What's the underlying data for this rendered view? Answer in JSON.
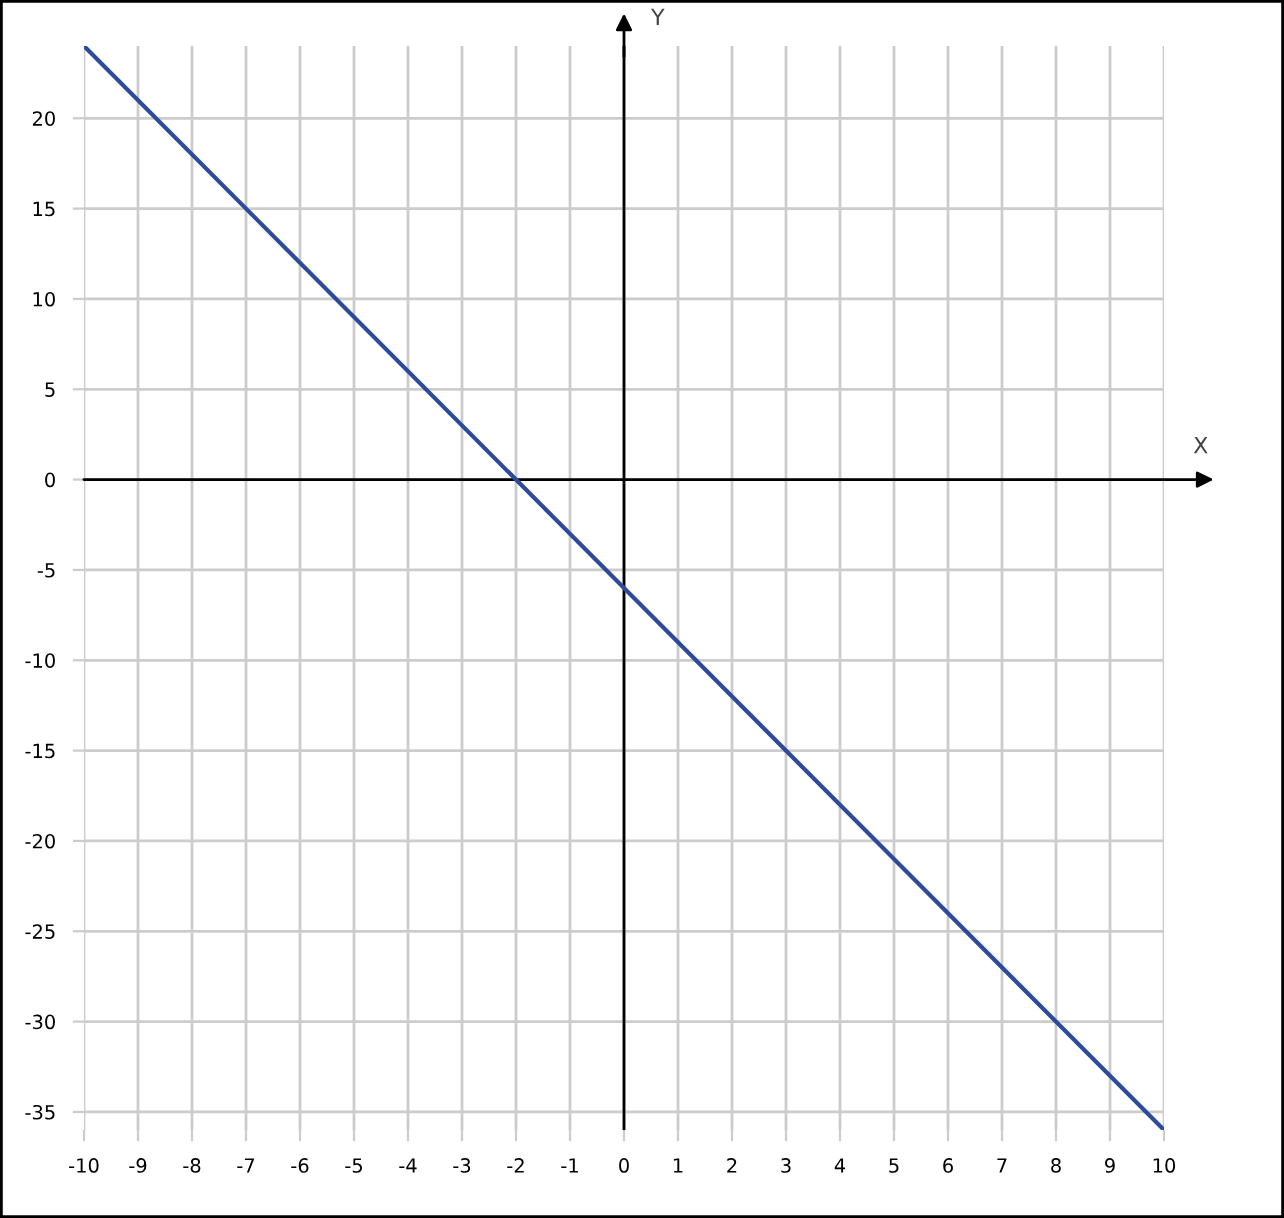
{
  "chart_data": {
    "type": "line",
    "xlabel": "X",
    "ylabel": "Y",
    "x": [
      -10,
      10
    ],
    "series": [
      {
        "color": "#2e4a9a",
        "values": [
          24,
          -36
        ]
      }
    ],
    "xlim": [
      -10,
      10
    ],
    "ylim": [
      -36,
      24
    ],
    "xticks": [
      -10,
      -9,
      -8,
      -7,
      -6,
      -5,
      -4,
      -3,
      -2,
      -1,
      0,
      1,
      2,
      3,
      4,
      5,
      6,
      7,
      8,
      9,
      10
    ],
    "yticks": [
      -35,
      -30,
      -25,
      -20,
      -15,
      -10,
      -5,
      0,
      5,
      10,
      15,
      20
    ],
    "grid": true
  }
}
